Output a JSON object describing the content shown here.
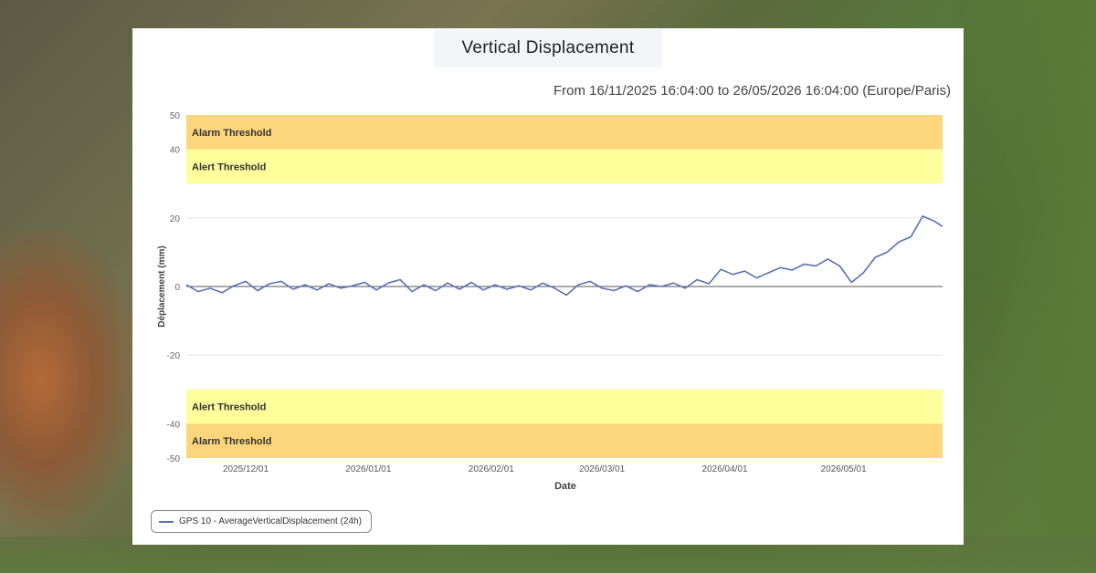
{
  "page": {
    "title": "Vertical Displacement",
    "subtitle": "From 16/11/2025 16:04:00 to 26/05/2026 16:04:00 (Europe/Paris)"
  },
  "chart_data": {
    "type": "line",
    "title": "Vertical Displacement",
    "subtitle": "From 16/11/2025 16:04:00 to 26/05/2026 16:04:00 (Europe/Paris)",
    "xlabel": "Date",
    "ylabel": "Déplacement (mm)",
    "ylim": [
      -50,
      50
    ],
    "xlim": [
      "2025-11-16",
      "2026-05-26"
    ],
    "y_ticks": [
      50,
      40,
      20,
      0,
      -20,
      -40,
      -50
    ],
    "x_ticks": [
      "2025/12/01",
      "2026/01/01",
      "2026/02/01",
      "2026/03/01",
      "2026/04/01",
      "2026/05/01"
    ],
    "grid": true,
    "legend_placement": "bottom-left",
    "threshold_bands": [
      {
        "label": "Alarm Threshold",
        "from": 40,
        "to": 50,
        "color": "#fdd57c"
      },
      {
        "label": "Alert Threshold",
        "from": 30,
        "to": 40,
        "color": "#fefe9a"
      },
      {
        "label": "Alert Threshold",
        "from": -40,
        "to": -30,
        "color": "#fefe9a"
      },
      {
        "label": "Alarm Threshold",
        "from": -50,
        "to": -40,
        "color": "#fdd57c"
      }
    ],
    "series": [
      {
        "name": "GPS 10 - AverageVerticalDisplacement (24h)",
        "color": "#5b6fb5",
        "points": [
          [
            "2025-11-16",
            0.5
          ],
          [
            "2025-11-19",
            -1.5
          ],
          [
            "2025-11-22",
            -0.5
          ],
          [
            "2025-11-25",
            -1.8
          ],
          [
            "2025-11-28",
            0.2
          ],
          [
            "2025-12-01",
            1.5
          ],
          [
            "2025-12-04",
            -1.2
          ],
          [
            "2025-12-07",
            0.8
          ],
          [
            "2025-12-10",
            1.5
          ],
          [
            "2025-12-13",
            -0.8
          ],
          [
            "2025-12-16",
            0.5
          ],
          [
            "2025-12-19",
            -1.0
          ],
          [
            "2025-12-22",
            0.8
          ],
          [
            "2025-12-25",
            -0.5
          ],
          [
            "2025-12-28",
            0.2
          ],
          [
            "2025-12-31",
            1.2
          ],
          [
            "2026-01-03",
            -1.0
          ],
          [
            "2026-01-06",
            1.0
          ],
          [
            "2026-01-09",
            2.0
          ],
          [
            "2026-01-12",
            -1.5
          ],
          [
            "2026-01-15",
            0.5
          ],
          [
            "2026-01-18",
            -1.2
          ],
          [
            "2026-01-21",
            1.0
          ],
          [
            "2026-01-24",
            -0.8
          ],
          [
            "2026-01-27",
            1.2
          ],
          [
            "2026-01-30",
            -1.0
          ],
          [
            "2026-02-02",
            0.5
          ],
          [
            "2026-02-05",
            -0.8
          ],
          [
            "2026-02-08",
            0.2
          ],
          [
            "2026-02-11",
            -1.0
          ],
          [
            "2026-02-14",
            1.0
          ],
          [
            "2026-02-17",
            -0.5
          ],
          [
            "2026-02-20",
            -2.5
          ],
          [
            "2026-02-23",
            0.5
          ],
          [
            "2026-02-26",
            1.5
          ],
          [
            "2026-03-01",
            -0.5
          ],
          [
            "2026-03-04",
            -1.2
          ],
          [
            "2026-03-07",
            0.2
          ],
          [
            "2026-03-10",
            -1.5
          ],
          [
            "2026-03-13",
            0.5
          ],
          [
            "2026-03-16",
            0.0
          ],
          [
            "2026-03-19",
            1.0
          ],
          [
            "2026-03-22",
            -0.5
          ],
          [
            "2026-03-25",
            2.0
          ],
          [
            "2026-03-28",
            0.8
          ],
          [
            "2026-03-31",
            5.0
          ],
          [
            "2026-04-03",
            3.5
          ],
          [
            "2026-04-06",
            4.5
          ],
          [
            "2026-04-09",
            2.5
          ],
          [
            "2026-04-12",
            4.0
          ],
          [
            "2026-04-15",
            5.5
          ],
          [
            "2026-04-18",
            4.8
          ],
          [
            "2026-04-21",
            6.5
          ],
          [
            "2026-04-24",
            6.0
          ],
          [
            "2026-04-27",
            8.0
          ],
          [
            "2026-04-30",
            6.0
          ],
          [
            "2026-05-03",
            1.2
          ],
          [
            "2026-05-06",
            4.0
          ],
          [
            "2026-05-09",
            8.5
          ],
          [
            "2026-05-12",
            10.0
          ],
          [
            "2026-05-15",
            13.0
          ],
          [
            "2026-05-18",
            14.5
          ],
          [
            "2026-05-21",
            20.5
          ],
          [
            "2026-05-24",
            19.0
          ],
          [
            "2026-05-26",
            17.5
          ]
        ]
      }
    ]
  },
  "legend": {
    "items": [
      {
        "label": "GPS 10 - AverageVerticalDisplacement (24h)",
        "color": "#5b6fb5"
      }
    ]
  }
}
